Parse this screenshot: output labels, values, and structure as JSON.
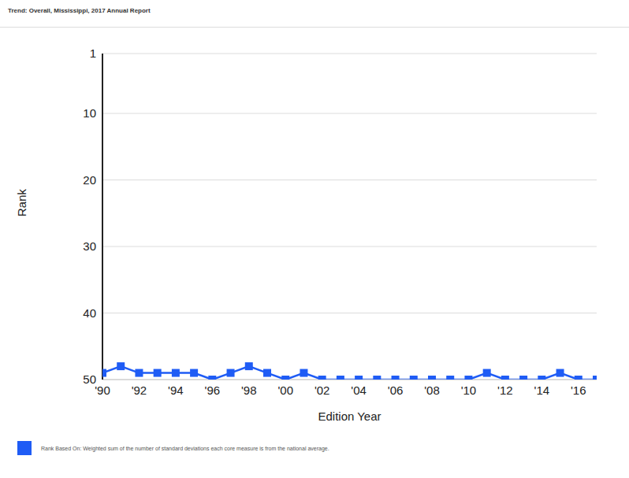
{
  "chart_data": {
    "type": "line",
    "title": "Trend: Overall, Mississippi, 2017 Annual Report",
    "x_label": "Edition Year",
    "y_label": "Rank",
    "x": [
      1990,
      1991,
      1992,
      1993,
      1994,
      1995,
      1996,
      1997,
      1998,
      1999,
      2000,
      2001,
      2002,
      2003,
      2004,
      2005,
      2006,
      2007,
      2008,
      2009,
      2010,
      2011,
      2012,
      2013,
      2014,
      2015,
      2016,
      2017
    ],
    "series": [
      {
        "name": "Rank Based On: Weighted sum of the number of standard deviations each core measure is from the national average.",
        "color": "#1f5cf5",
        "marker": "square",
        "values": [
          49,
          48,
          49,
          49,
          49,
          49,
          50,
          49,
          48,
          49,
          50,
          49,
          50,
          50,
          50,
          50,
          50,
          50,
          50,
          50,
          50,
          49,
          50,
          50,
          50,
          49,
          50,
          50
        ]
      }
    ],
    "xlim": [
      1990,
      2017
    ],
    "xticks": [
      {
        "value": 1990,
        "label": "'90"
      },
      {
        "value": 1992,
        "label": "'92"
      },
      {
        "value": 1994,
        "label": "'94"
      },
      {
        "value": 1996,
        "label": "'96"
      },
      {
        "value": 1998,
        "label": "'98"
      },
      {
        "value": 2000,
        "label": "'00"
      },
      {
        "value": 2002,
        "label": "'02"
      },
      {
        "value": 2004,
        "label": "'04"
      },
      {
        "value": 2006,
        "label": "'06"
      },
      {
        "value": 2008,
        "label": "'08"
      },
      {
        "value": 2010,
        "label": "'10"
      },
      {
        "value": 2012,
        "label": "'12"
      },
      {
        "value": 2014,
        "label": "'14"
      },
      {
        "value": 2016,
        "label": "'16"
      }
    ],
    "ylim": [
      1,
      50
    ],
    "yticks": [
      1,
      10,
      20,
      30,
      40,
      50
    ],
    "grid": true
  }
}
